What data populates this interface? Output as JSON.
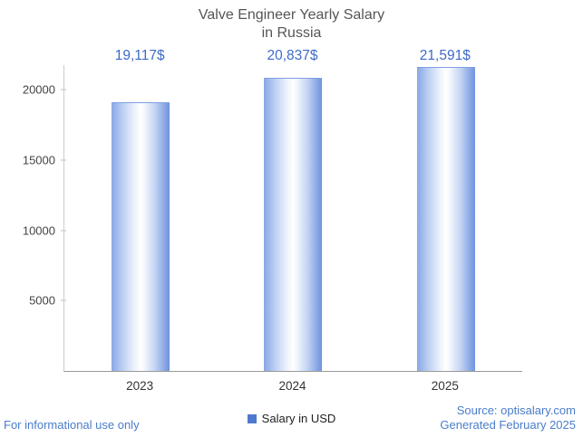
{
  "title": {
    "line1": "Valve Engineer Yearly Salary",
    "line2": "in Russia"
  },
  "chart_data": {
    "type": "bar",
    "title": "Valve Engineer Yearly Salary in Russia",
    "categories": [
      "2023",
      "2024",
      "2025"
    ],
    "values": [
      19117,
      20837,
      21591
    ],
    "value_labels": [
      "19,117$",
      "20,837$",
      "21,591$"
    ],
    "xlabel": "",
    "ylabel": "",
    "ylim": [
      0,
      21740
    ],
    "yticks": [
      5000,
      10000,
      15000,
      20000
    ],
    "grid": false,
    "legend": {
      "label": "Salary in USD",
      "position": "bottom"
    }
  },
  "footer": {
    "left": "For informational use only",
    "source": "Source: optisalary.com",
    "generated": "Generated February 2025"
  },
  "colors": {
    "accent_label": "#3e6bc7",
    "bar_edge": "#88a7e4",
    "bar_mid": "#ffffff",
    "bar_right": "#6f93dc",
    "legend_swatch": "#4f79cc",
    "title_text": "#555555",
    "axis_text": "#444444",
    "axis_line": "#cccccc",
    "baseline": "#9a9a9a",
    "footer_link": "#4a7dc9"
  }
}
